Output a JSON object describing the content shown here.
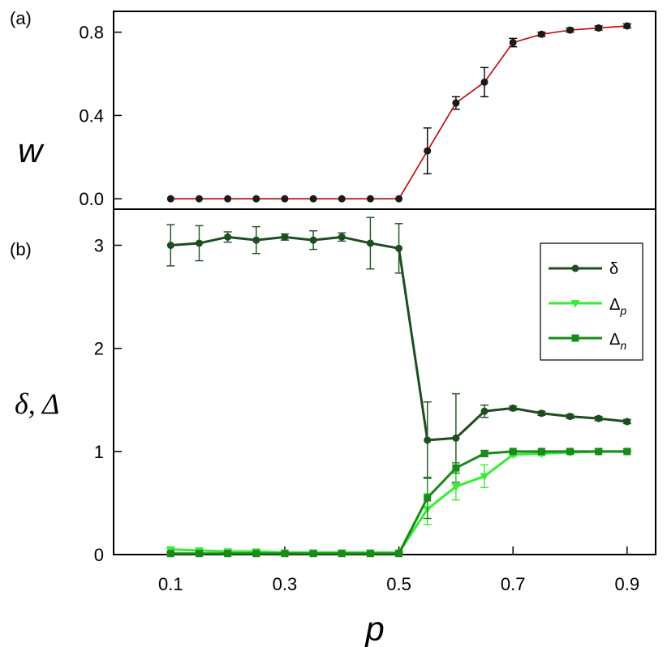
{
  "chart_data": [
    {
      "type": "line",
      "panel_label": "(a)",
      "ylabel": "w",
      "xlabel": "",
      "xlim": [
        0.0,
        0.95
      ],
      "ylim": [
        -0.05,
        0.9
      ],
      "yticks": [
        "0.0",
        "0.4",
        "0.8"
      ],
      "ytick_values": [
        0.0,
        0.4,
        0.8
      ],
      "series": [
        {
          "name": "w",
          "color": "#c00000",
          "marker_color": "#1a1a1a",
          "x": [
            0.1,
            0.15,
            0.2,
            0.25,
            0.3,
            0.35,
            0.4,
            0.45,
            0.5,
            0.55,
            0.6,
            0.65,
            0.7,
            0.75,
            0.8,
            0.85,
            0.9
          ],
          "y": [
            0.0,
            0.0,
            0.0,
            0.0,
            0.0,
            0.0,
            0.0,
            0.0,
            0.0,
            0.23,
            0.46,
            0.56,
            0.75,
            0.79,
            0.81,
            0.82,
            0.83
          ],
          "err": [
            0,
            0,
            0,
            0,
            0,
            0,
            0,
            0,
            0,
            0.11,
            0.03,
            0.07,
            0.02,
            0.01,
            0.01,
            0.01,
            0.01
          ]
        }
      ]
    },
    {
      "type": "line",
      "panel_label": "(b)",
      "ylabel": "δ, Δ",
      "xlabel": "p",
      "xlim": [
        0.0,
        0.95
      ],
      "ylim": [
        0,
        3.35
      ],
      "yticks": [
        "0",
        "1",
        "2",
        "3"
      ],
      "ytick_values": [
        0,
        1,
        2,
        3
      ],
      "xticks": [
        "0.1",
        "0.3",
        "0.5",
        "0.7",
        "0.9"
      ],
      "xtick_values": [
        0.1,
        0.3,
        0.5,
        0.7,
        0.9
      ],
      "legend": {
        "position": "top-right",
        "entries": [
          {
            "label": "δ",
            "sub": ""
          },
          {
            "label": "Δ",
            "sub": "p"
          },
          {
            "label": "Δ",
            "sub": "n"
          }
        ]
      },
      "series": [
        {
          "name": "δ",
          "color": "#1e4d1e",
          "marker": "circle",
          "x": [
            0.1,
            0.15,
            0.2,
            0.25,
            0.3,
            0.35,
            0.4,
            0.45,
            0.5,
            0.55,
            0.6,
            0.65,
            0.7,
            0.75,
            0.8,
            0.85,
            0.9
          ],
          "y": [
            3.0,
            3.02,
            3.08,
            3.05,
            3.08,
            3.05,
            3.08,
            3.02,
            2.97,
            1.11,
            1.13,
            1.39,
            1.42,
            1.37,
            1.34,
            1.32,
            1.29
          ],
          "err": [
            0.2,
            0.17,
            0.05,
            0.13,
            0.03,
            0.09,
            0.04,
            0.25,
            0.24,
            0.37,
            0.43,
            0.06,
            0.02,
            0.02,
            0.02,
            0.02,
            0.02
          ]
        },
        {
          "name": "Δp",
          "color": "#33ee33",
          "marker": "triangle-down",
          "x": [
            0.1,
            0.15,
            0.2,
            0.25,
            0.3,
            0.35,
            0.4,
            0.45,
            0.5,
            0.55,
            0.6,
            0.65,
            0.7,
            0.75,
            0.8,
            0.85,
            0.9
          ],
          "y": [
            0.05,
            0.04,
            0.03,
            0.03,
            0.02,
            0.02,
            0.02,
            0.02,
            0.02,
            0.44,
            0.66,
            0.76,
            0.97,
            0.98,
            0.99,
            1.0,
            1.0
          ],
          "err": [
            0.01,
            0.01,
            0.01,
            0.01,
            0.01,
            0.01,
            0.01,
            0.01,
            0.01,
            0.15,
            0.13,
            0.11,
            0.02,
            0.02,
            0.01,
            0.01,
            0.01
          ]
        },
        {
          "name": "Δn",
          "color": "#1a8a1a",
          "marker": "square",
          "x": [
            0.1,
            0.15,
            0.2,
            0.25,
            0.3,
            0.35,
            0.4,
            0.45,
            0.5,
            0.55,
            0.6,
            0.65,
            0.7,
            0.75,
            0.8,
            0.85,
            0.9
          ],
          "y": [
            0.01,
            0.01,
            0.01,
            0.01,
            0.01,
            0.01,
            0.01,
            0.01,
            0.01,
            0.55,
            0.84,
            0.98,
            1.0,
            1.0,
            1.0,
            1.0,
            1.0
          ],
          "err": [
            0.01,
            0.01,
            0.01,
            0.01,
            0.01,
            0.01,
            0.01,
            0.01,
            0.01,
            0.2,
            0.05,
            0.03,
            0.01,
            0.01,
            0.01,
            0.01,
            0.01
          ]
        }
      ]
    }
  ]
}
